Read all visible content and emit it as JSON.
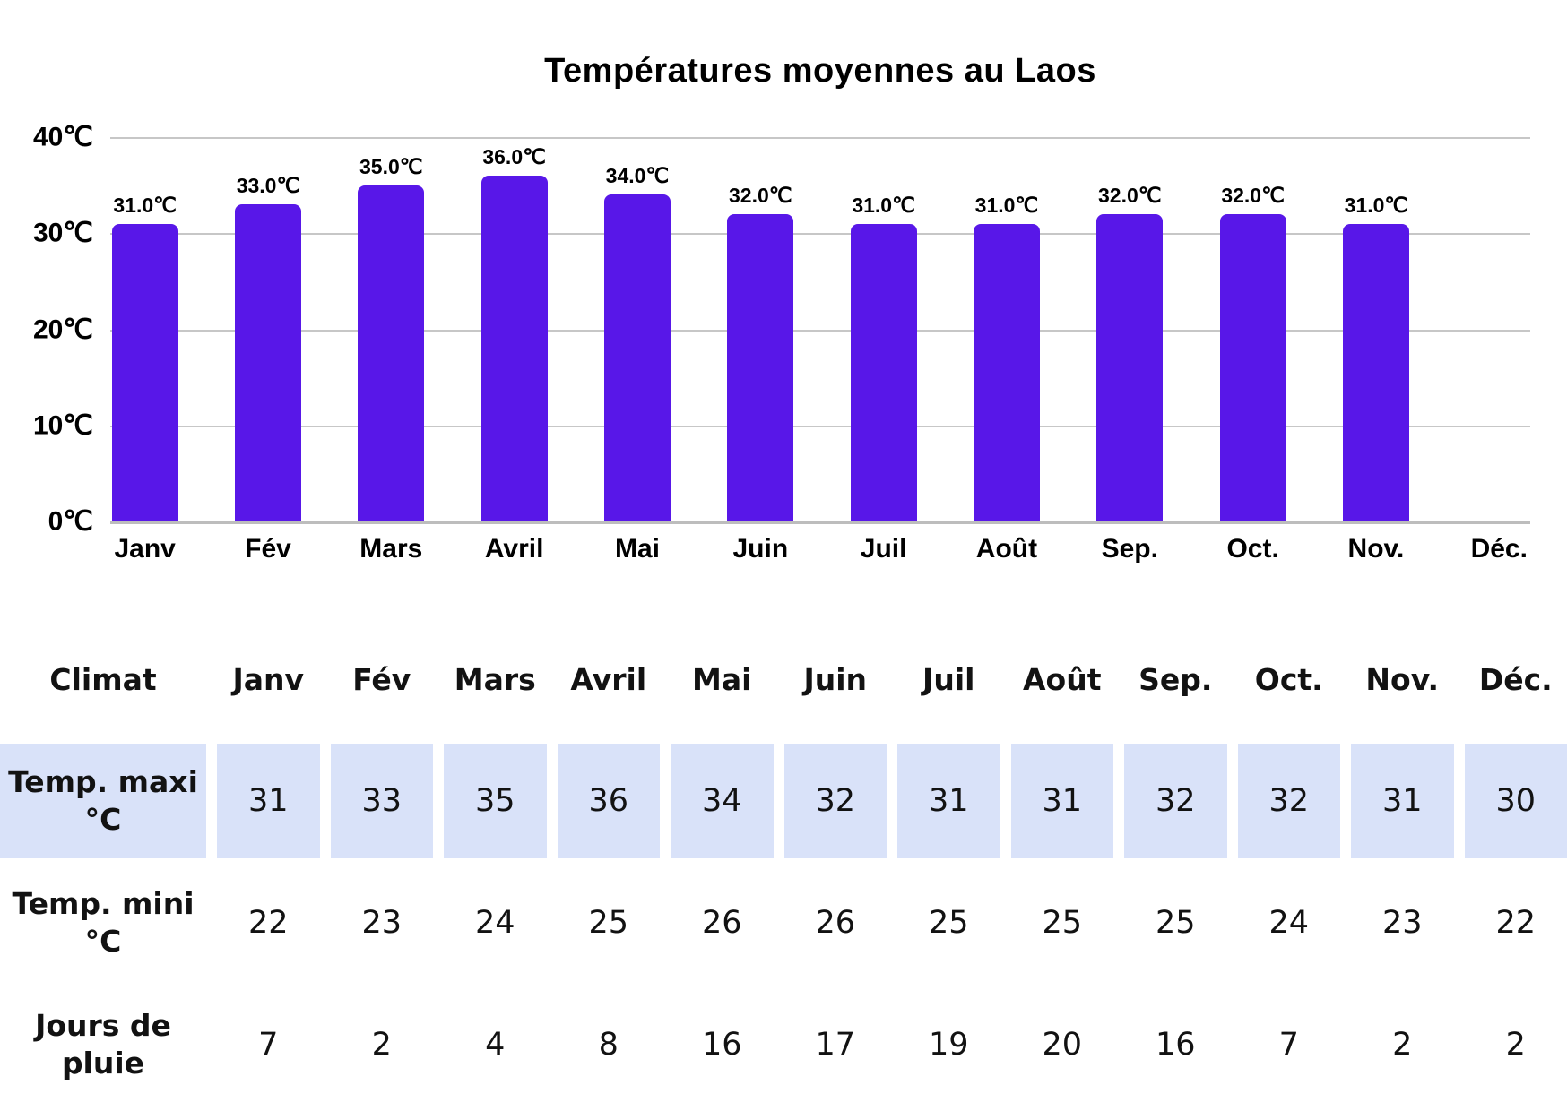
{
  "chart_data": {
    "type": "bar",
    "title": "Températures moyennes au Laos",
    "categories": [
      "Janv",
      "Fév",
      "Mars",
      "Avril",
      "Mai",
      "Juin",
      "Juil",
      "Août",
      "Sep.",
      "Oct.",
      "Nov.",
      "Déc."
    ],
    "values": [
      31,
      33,
      35,
      36,
      34,
      32,
      31,
      31,
      32,
      32,
      31,
      null
    ],
    "bar_labels": [
      "31.0℃",
      "33.0℃",
      "35.0℃",
      "36.0℃",
      "34.0℃",
      "32.0℃",
      "31.0℃",
      "31.0℃",
      "32.0℃",
      "32.0℃",
      "31.0℃",
      null
    ],
    "yticks_top_to_bottom": [
      "40℃",
      "30℃",
      "20℃",
      "10℃",
      "0℃"
    ],
    "ylim": [
      0,
      40
    ],
    "grid": true,
    "legend": "none",
    "bar_color": "#5817e8",
    "grid_color": "#c7c7c7",
    "note": "No bar is drawn for Déc."
  },
  "table": {
    "corner_label": "Climat",
    "columns": [
      "Janv",
      "Fév",
      "Mars",
      "Avril",
      "Mai",
      "Juin",
      "Juil",
      "Août",
      "Sep.",
      "Oct.",
      "Nov.",
      "Déc."
    ],
    "rows": [
      {
        "label_lines": [
          "Temp. maxi",
          "°C"
        ],
        "highlight": true,
        "values": [
          31,
          33,
          35,
          36,
          34,
          32,
          31,
          31,
          32,
          32,
          31,
          30
        ]
      },
      {
        "label_lines": [
          "Temp. mini",
          "°C"
        ],
        "highlight": false,
        "values": [
          22,
          23,
          24,
          25,
          26,
          26,
          25,
          25,
          25,
          24,
          23,
          22
        ]
      },
      {
        "label_lines": [
          "Jours de",
          "pluie"
        ],
        "highlight": false,
        "values": [
          7,
          2,
          4,
          8,
          16,
          17,
          19,
          20,
          16,
          7,
          2,
          2
        ]
      }
    ],
    "highlight_color": "#d9e2f9"
  }
}
